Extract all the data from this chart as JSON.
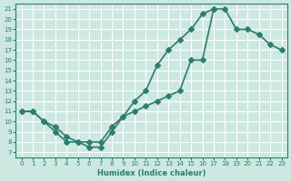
{
  "line1_x": [
    0,
    1,
    2,
    3,
    4,
    5,
    6,
    7,
    8,
    9,
    10,
    11,
    12,
    13,
    14,
    15,
    16,
    17
  ],
  "line1_y": [
    11,
    11,
    10,
    9,
    8,
    8,
    7.5,
    7.5,
    9,
    10.5,
    12,
    13,
    15.5,
    17,
    18,
    19,
    20.5,
    21
  ],
  "line2_x": [
    0,
    1,
    2,
    3,
    4,
    5,
    6,
    7,
    8,
    9,
    10,
    11,
    12,
    13,
    14,
    15,
    16,
    17,
    18,
    19,
    20,
    21,
    22,
    23
  ],
  "line2_y": [
    11,
    11,
    10,
    9.5,
    8.5,
    8,
    8,
    8,
    9.5,
    10.5,
    11,
    11.5,
    12,
    12.5,
    13,
    16,
    16,
    21,
    21,
    19,
    19,
    18.5,
    17.5,
    17
  ],
  "color": "#2e7d6e",
  "bg_color": "#cce8e0",
  "grid_color": "#ffffff",
  "xlabel": "Humidex (Indice chaleur)",
  "xlim": [
    -0.5,
    23.5
  ],
  "ylim": [
    6.5,
    21.5
  ],
  "xticks": [
    0,
    1,
    2,
    3,
    4,
    5,
    6,
    7,
    8,
    9,
    10,
    11,
    12,
    13,
    14,
    15,
    16,
    17,
    18,
    19,
    20,
    21,
    22,
    23
  ],
  "yticks": [
    7,
    8,
    9,
    10,
    11,
    12,
    13,
    14,
    15,
    16,
    17,
    18,
    19,
    20,
    21
  ],
  "marker": "D",
  "markersize": 3,
  "linewidth": 1.2
}
